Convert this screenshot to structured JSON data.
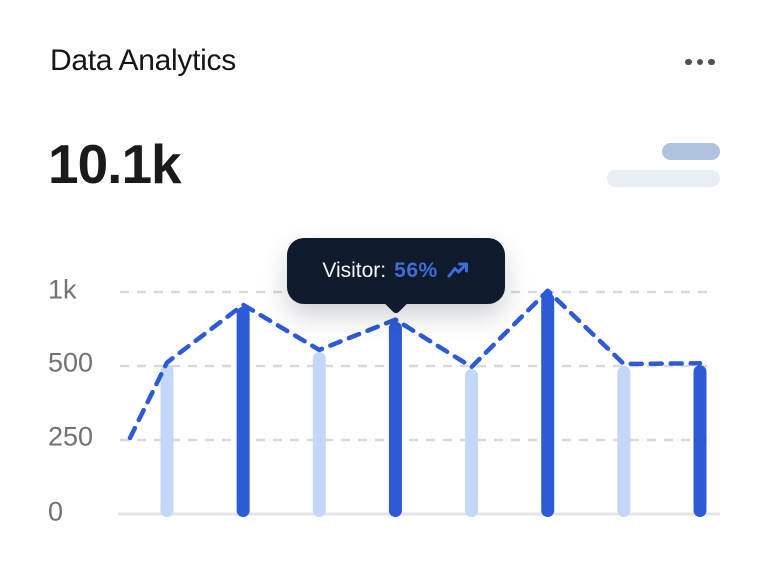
{
  "card": {
    "title": "Data Analytics",
    "metric_value": "10.1k",
    "menu_icon": "ellipsis-horizontal-icon"
  },
  "tooltip": {
    "label": "Visitor:",
    "value": "56%",
    "icon": "trending-up-icon"
  },
  "chart_data": {
    "type": "bar",
    "series": [
      {
        "name": "visitor-bars",
        "type": "bar",
        "values": [
          510,
          900,
          595,
          800,
          490,
          995,
          500,
          505
        ]
      },
      {
        "name": "visitor-trend",
        "type": "line",
        "style": "dashed",
        "values": [
          250,
          510,
          900,
          595,
          800,
          490,
          995,
          500,
          505
        ],
        "note": "first point is a lead-in before the first bar"
      }
    ],
    "y_ticks": [
      0,
      250,
      500,
      1000
    ],
    "y_tick_labels": [
      "0",
      "250",
      "500",
      "1k"
    ],
    "x_tick_labels": [],
    "ylim": [
      0,
      1000
    ],
    "grid": "dashed-horizontal",
    "legend": "none",
    "bar_color_pattern": [
      "light",
      "dark"
    ],
    "highlighted_bar_index": 3
  },
  "colors": {
    "background": "#ffffff",
    "title_text": "#151518",
    "metric_text": "#1a1a1d",
    "menu_dots": "#515155",
    "pill_top": "#adc3de",
    "pill_bottom": "#e9eef5",
    "bar_light": "#c4d7f8",
    "bar_dark": "#2d5bd6",
    "trend_line": "#2d5bd6",
    "grid_line": "#d9d9d9",
    "baseline": "#e4e4e5",
    "axis_text": "#717176",
    "tooltip_bg": "#0f1a2c",
    "tooltip_text": "#f7f8fa",
    "tooltip_accent": "#3f6cd7"
  }
}
